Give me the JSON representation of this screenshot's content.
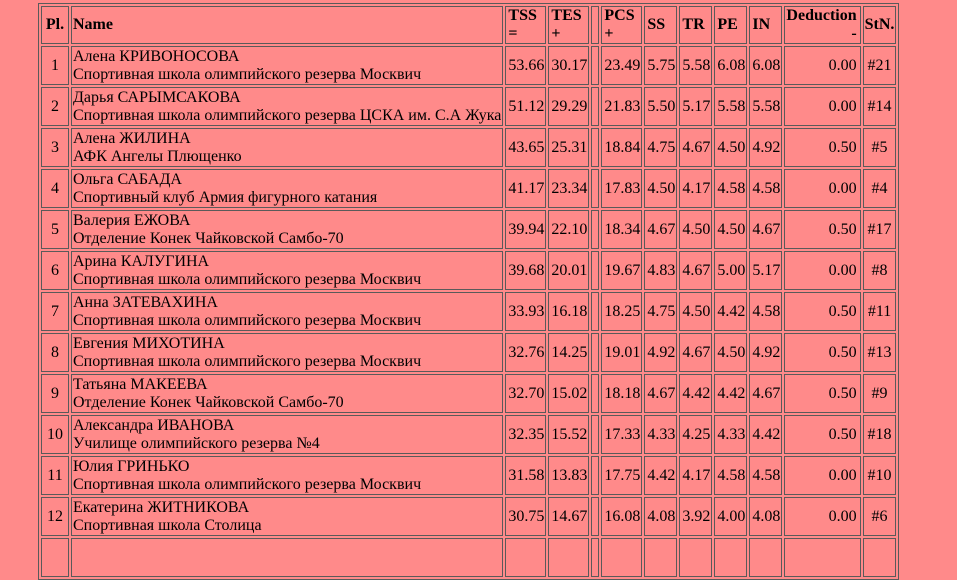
{
  "page": {
    "background_color": "#ff8a8a",
    "border_color": "#5a5a5a",
    "text_color": "#000000"
  },
  "table": {
    "header": {
      "pl": "Pl.",
      "name": "Name",
      "tss": "TSS",
      "tss_sign": "=",
      "tes": "TES",
      "tes_sign": "+",
      "pcs": "PCS",
      "pcs_sign": "+",
      "ss": "SS",
      "tr": "TR",
      "pe": "PE",
      "in": "IN",
      "deduction": "Deduction",
      "deduction_sign": "-",
      "stn": "StN."
    },
    "rows": [
      {
        "pl": "1",
        "name": "Алена КРИВОНОСОВА",
        "club": "Спортивная школа олимпийского резерва Москвич",
        "tss": "53.66",
        "tes": "30.17",
        "pcs": "23.49",
        "ss": "5.75",
        "tr": "5.58",
        "pe": "6.08",
        "in": "6.08",
        "deduction": "0.00",
        "stn": "#21"
      },
      {
        "pl": "2",
        "name": "Дарья САРЫМСАКОВА",
        "club": "Спортивная школа олимпийского резерва ЦСКА им. С.А Жука",
        "tss": "51.12",
        "tes": "29.29",
        "pcs": "21.83",
        "ss": "5.50",
        "tr": "5.17",
        "pe": "5.58",
        "in": "5.58",
        "deduction": "0.00",
        "stn": "#14"
      },
      {
        "pl": "3",
        "name": "Алена ЖИЛИНА",
        "club": "АФК Ангелы Плющенко",
        "tss": "43.65",
        "tes": "25.31",
        "pcs": "18.84",
        "ss": "4.75",
        "tr": "4.67",
        "pe": "4.50",
        "in": "4.92",
        "deduction": "0.50",
        "stn": "#5"
      },
      {
        "pl": "4",
        "name": "Ольга САБАДА",
        "club": "Спортивный клуб Армия фигурного катания",
        "tss": "41.17",
        "tes": "23.34",
        "pcs": "17.83",
        "ss": "4.50",
        "tr": "4.17",
        "pe": "4.58",
        "in": "4.58",
        "deduction": "0.00",
        "stn": "#4"
      },
      {
        "pl": "5",
        "name": "Валерия ЕЖОВА",
        "club": "Отделение Конек Чайковской Самбо-70",
        "tss": "39.94",
        "tes": "22.10",
        "pcs": "18.34",
        "ss": "4.67",
        "tr": "4.50",
        "pe": "4.50",
        "in": "4.67",
        "deduction": "0.50",
        "stn": "#17"
      },
      {
        "pl": "6",
        "name": "Арина КАЛУГИНА",
        "club": "Спортивная школа олимпийского резерва Москвич",
        "tss": "39.68",
        "tes": "20.01",
        "pcs": "19.67",
        "ss": "4.83",
        "tr": "4.67",
        "pe": "5.00",
        "in": "5.17",
        "deduction": "0.00",
        "stn": "#8"
      },
      {
        "pl": "7",
        "name": "Анна ЗАТЕВАХИНА",
        "club": "Спортивная школа олимпийского резерва Москвич",
        "tss": "33.93",
        "tes": "16.18",
        "pcs": "18.25",
        "ss": "4.75",
        "tr": "4.50",
        "pe": "4.42",
        "in": "4.58",
        "deduction": "0.50",
        "stn": "#11"
      },
      {
        "pl": "8",
        "name": "Евгения МИХОТИНА",
        "club": "Спортивная школа олимпийского резерва Москвич",
        "tss": "32.76",
        "tes": "14.25",
        "pcs": "19.01",
        "ss": "4.92",
        "tr": "4.67",
        "pe": "4.50",
        "in": "4.92",
        "deduction": "0.50",
        "stn": "#13"
      },
      {
        "pl": "9",
        "name": "Татьяна МАКЕЕВА",
        "club": "Отделение Конек Чайковской Самбо-70",
        "tss": "32.70",
        "tes": "15.02",
        "pcs": "18.18",
        "ss": "4.67",
        "tr": "4.42",
        "pe": "4.42",
        "in": "4.67",
        "deduction": "0.50",
        "stn": "#9"
      },
      {
        "pl": "10",
        "name": "Александра ИВАНОВА",
        "club": "Училище олимпийского резерва №4",
        "tss": "32.35",
        "tes": "15.52",
        "pcs": "17.33",
        "ss": "4.33",
        "tr": "4.25",
        "pe": "4.33",
        "in": "4.42",
        "deduction": "0.50",
        "stn": "#18"
      },
      {
        "pl": "11",
        "name": "Юлия ГРИНЬКО",
        "club": "Спортивная школа олимпийского резерва Москвич",
        "tss": "31.58",
        "tes": "13.83",
        "pcs": "17.75",
        "ss": "4.42",
        "tr": "4.17",
        "pe": "4.58",
        "in": "4.58",
        "deduction": "0.00",
        "stn": "#10"
      },
      {
        "pl": "12",
        "name": "Екатерина ЖИТНИКОВА",
        "club": "Спортивная школа Столица",
        "tss": "30.75",
        "tes": "14.67",
        "pcs": "16.08",
        "ss": "4.08",
        "tr": "3.92",
        "pe": "4.00",
        "in": "4.08",
        "deduction": "0.00",
        "stn": "#6"
      }
    ]
  }
}
